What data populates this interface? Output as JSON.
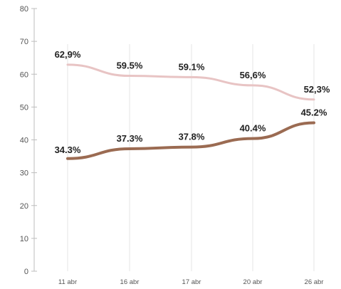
{
  "chart_data": {
    "type": "line",
    "title": "",
    "xlabel": "",
    "ylabel": "",
    "categories": [
      "11 abr",
      "16 abr",
      "17 abr",
      "20 abr",
      "26 abr"
    ],
    "ylim": [
      0,
      80
    ],
    "yticks": [
      0,
      10,
      20,
      30,
      40,
      50,
      60,
      70,
      80
    ],
    "grid": "vertical",
    "legend": "none",
    "series": [
      {
        "color": "#e8c4c4",
        "values": [
          62.9,
          59.5,
          59.1,
          56.6,
          52.3
        ],
        "labels": [
          "62,9%",
          "59.5%",
          "59.1%",
          "56,6%",
          "52,3%"
        ]
      },
      {
        "color": "#9b6b52",
        "values": [
          34.3,
          37.3,
          37.8,
          40.4,
          45.2
        ],
        "labels": [
          "34.3%",
          "37.3%",
          "37.8%",
          "40.4%",
          "45.2%"
        ]
      }
    ]
  }
}
